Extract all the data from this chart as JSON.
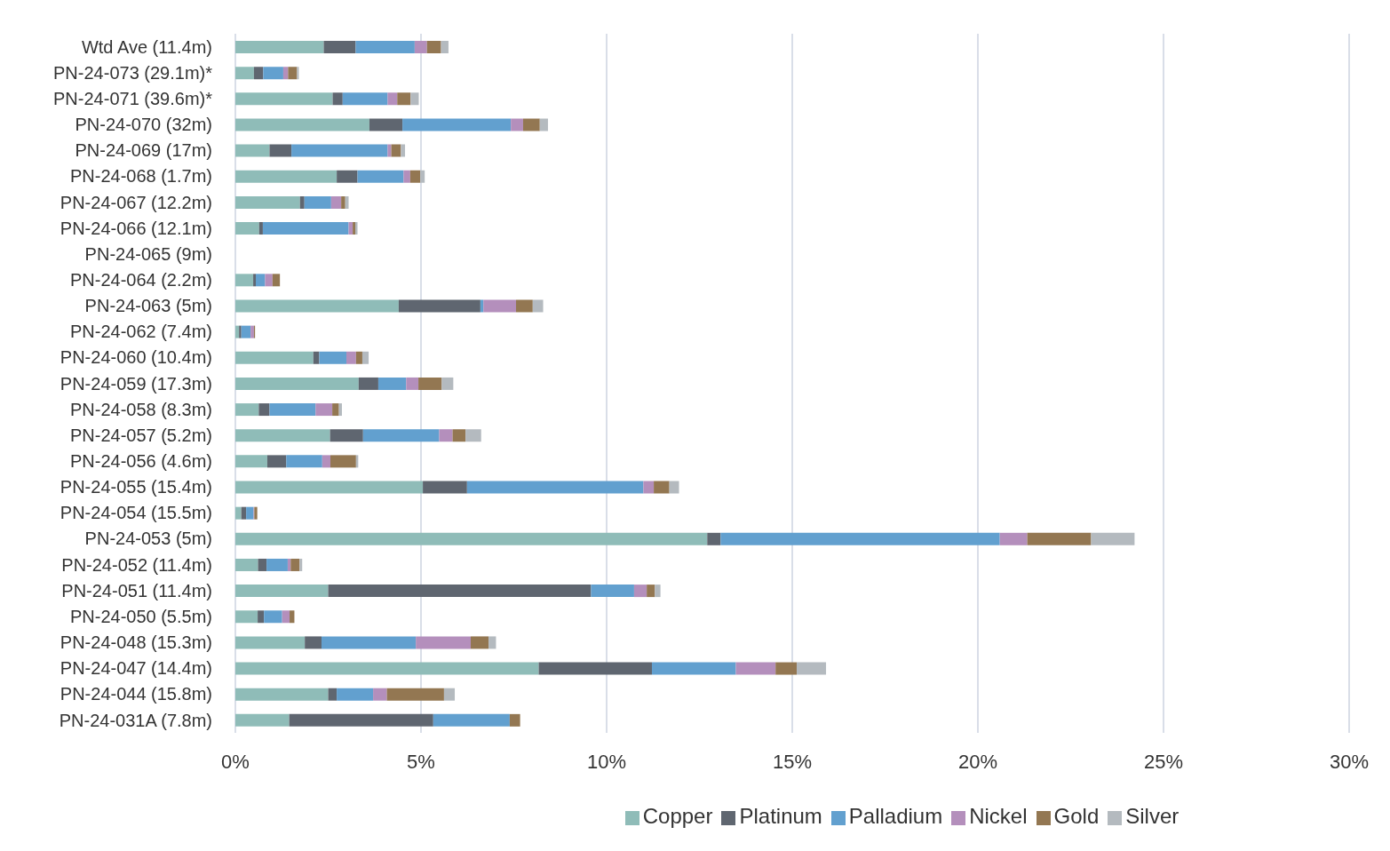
{
  "chart_data": {
    "type": "bar",
    "orientation": "horizontal",
    "stacked": true,
    "categories": [
      "Wtd Ave (11.4m)",
      "PN-24-073 (29.1m)*",
      "PN-24-071 (39.6m)*",
      "PN-24-070 (32m)",
      "PN-24-069 (17m)",
      "PN-24-068 (1.7m)",
      "PN-24-067 (12.2m)",
      "PN-24-066 (12.1m)",
      "PN-24-065 (9m)",
      "PN-24-064 (2.2m)",
      "PN-24-063 (5m)",
      "PN-24-062 (7.4m)",
      "PN-24-060 (10.4m)",
      "PN-24-059 (17.3m)",
      "PN-24-058 (8.3m)",
      "PN-24-057 (5.2m)",
      "PN-24-056 (4.6m)",
      "PN-24-055 (15.4m)",
      "PN-24-054 (15.5m)",
      "PN-24-053 (5m)",
      "PN-24-052 (11.4m)",
      "PN-24-051 (11.4m)",
      "PN-24-050 (5.5m)",
      "PN-24-048 (15.3m)",
      "PN-24-047 (14.4m)",
      "PN-24-044 (15.8m)",
      "PN-24-031A (7.8m)"
    ],
    "series": [
      {
        "name": "Copper",
        "color": "#8fbcb8",
        "values": [
          2.38,
          0.5,
          2.62,
          3.61,
          0.92,
          2.73,
          1.74,
          0.64,
          null,
          0.48,
          4.4,
          0.1,
          2.1,
          3.32,
          0.63,
          2.55,
          0.86,
          5.05,
          0.16,
          12.71,
          0.61,
          2.5,
          0.6,
          1.87,
          8.17,
          2.5,
          1.45
        ]
      },
      {
        "name": "Platinum",
        "color": "#5f6670",
        "values": [
          0.86,
          0.25,
          0.27,
          0.89,
          0.59,
          0.56,
          0.12,
          0.1,
          null,
          0.07,
          2.2,
          0.06,
          0.16,
          0.53,
          0.29,
          0.89,
          0.51,
          1.19,
          0.13,
          0.36,
          0.23,
          7.08,
          0.17,
          0.45,
          3.05,
          0.23,
          3.88
        ]
      },
      {
        "name": "Palladium",
        "color": "#62a0cf",
        "values": [
          1.59,
          0.54,
          1.21,
          2.92,
          2.59,
          1.24,
          0.72,
          2.31,
          null,
          0.25,
          0.08,
          0.25,
          0.73,
          0.75,
          1.24,
          2.05,
          0.97,
          4.75,
          0.2,
          7.52,
          0.57,
          1.16,
          0.49,
          2.54,
          2.26,
          0.98,
          2.06
        ]
      },
      {
        "name": "Nickel",
        "color": "#b48fbc",
        "values": [
          0.33,
          0.13,
          0.26,
          0.33,
          0.1,
          0.18,
          0.27,
          0.11,
          null,
          0.2,
          0.88,
          0.09,
          0.26,
          0.33,
          0.45,
          0.36,
          0.22,
          0.28,
          0.02,
          0.74,
          0.08,
          0.34,
          0.2,
          1.48,
          1.07,
          0.37,
          0
        ]
      },
      {
        "name": "Gold",
        "color": "#937752",
        "values": [
          0.38,
          0.24,
          0.36,
          0.45,
          0.26,
          0.27,
          0.11,
          0.07,
          null,
          0.2,
          0.45,
          0.03,
          0.17,
          0.63,
          0.18,
          0.35,
          0.69,
          0.42,
          0.08,
          1.72,
          0.24,
          0.22,
          0.13,
          0.48,
          0.57,
          1.54,
          0.28
        ]
      },
      {
        "name": "Silver",
        "color": "#b4babf",
        "values": [
          0.2,
          0.05,
          0.22,
          0.22,
          0.11,
          0.12,
          0.09,
          0.06,
          null,
          null,
          0.28,
          0,
          0.17,
          0.31,
          0.08,
          0.42,
          0.06,
          0.26,
          null,
          1.17,
          0.07,
          0.15,
          null,
          0.2,
          0.79,
          0.29,
          0
        ]
      }
    ],
    "xlim": [
      0,
      30
    ],
    "xticks": [
      {
        "value": 0,
        "label": "0%"
      },
      {
        "value": 5,
        "label": "5%"
      },
      {
        "value": 10,
        "label": "10%"
      },
      {
        "value": 15,
        "label": "15%"
      },
      {
        "value": 20,
        "label": "20%"
      },
      {
        "value": 25,
        "label": "25%"
      },
      {
        "value": 30,
        "label": "30%"
      }
    ],
    "grid": "x",
    "legend": "bottom"
  }
}
